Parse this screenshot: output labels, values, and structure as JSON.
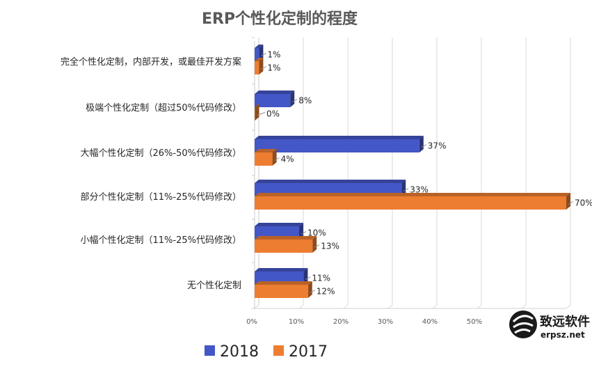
{
  "chart_data": {
    "type": "bar",
    "orientation": "horizontal",
    "three_d": true,
    "title": "ERP个性化定制的程度",
    "categories": [
      "完全个性化定制，内部开发，或最佳开发方案",
      "极端个性化定制（超过50%代码修改）",
      "大幅个性化定制（26%-50%代码修改）",
      "部分个性化定制（11%-25%代码修改）",
      "小幅个性化定制（11%-25%代码修改）",
      "无个性化定制"
    ],
    "series": [
      {
        "name": "2018",
        "color": "#4457c6",
        "values": [
          1,
          8,
          37,
          33,
          10,
          11
        ],
        "labels": [
          "1%",
          "8%",
          "37%",
          "33%",
          "10%",
          "11%"
        ]
      },
      {
        "name": "2017",
        "color": "#ed7d31",
        "values": [
          1,
          0,
          4,
          70,
          13,
          12
        ],
        "labels": [
          "1%",
          "0%",
          "4%",
          "70%",
          "13%",
          "12%"
        ]
      }
    ],
    "x_ticks": [
      "0%",
      "10%",
      "20%",
      "30%",
      "40%",
      "50%"
    ],
    "xlim": [
      0,
      70
    ],
    "grid": true,
    "legend_position": "bottom"
  },
  "watermark": {
    "brand": "致远软件",
    "url": "erpsz.net"
  }
}
